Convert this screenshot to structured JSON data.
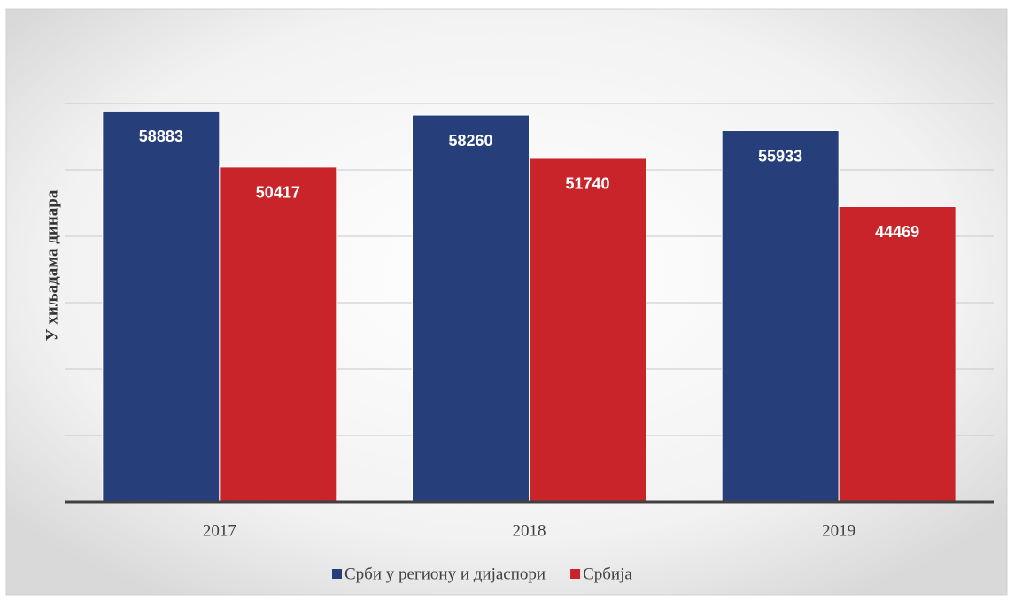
{
  "chart_data": {
    "type": "bar",
    "y_label": "У хиљадама динара",
    "categories": [
      "2017",
      "2018",
      "2019"
    ],
    "series": [
      {
        "name": "Срби у региону и дијаспори",
        "color": "#263f7b",
        "values": [
          58883,
          58260,
          55933
        ]
      },
      {
        "name": "Србија",
        "color": "#c8242a",
        "values": [
          50417,
          51740,
          44469
        ]
      }
    ],
    "ylim": [
      0,
      60000
    ],
    "yticks": [
      0,
      10000,
      20000,
      30000,
      40000,
      50000,
      60000
    ],
    "grid": true,
    "legend": "bottom"
  }
}
